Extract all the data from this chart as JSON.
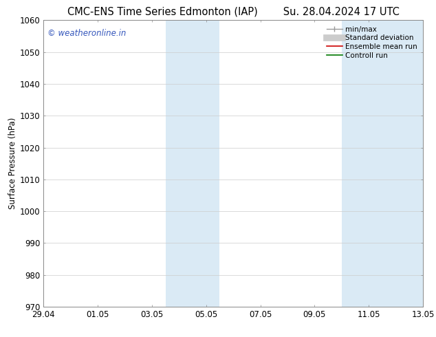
{
  "title_left": "CMC-ENS Time Series Edmonton (IAP)",
  "title_right": "Su. 28.04.2024 17 UTC",
  "ylabel": "Surface Pressure (hPa)",
  "ylim": [
    970,
    1060
  ],
  "yticks": [
    970,
    980,
    990,
    1000,
    1010,
    1020,
    1030,
    1040,
    1050,
    1060
  ],
  "xtick_labels": [
    "29.04",
    "01.05",
    "03.05",
    "05.05",
    "07.05",
    "09.05",
    "11.05",
    "13.05"
  ],
  "x_positions": [
    0,
    2,
    4,
    6,
    8,
    10,
    12,
    14
  ],
  "x_min": 0,
  "x_max": 14,
  "shaded_regions": [
    {
      "xmin": 4.5,
      "xmax": 6.5
    },
    {
      "xmin": 11.0,
      "xmax": 14.0
    }
  ],
  "shaded_color": "#daeaf5",
  "background_color": "#ffffff",
  "watermark_text": "© weatheronline.in",
  "watermark_color": "#3355bb",
  "legend_items": [
    {
      "label": "min/max",
      "color": "#aaaaaa",
      "lw": 1.2
    },
    {
      "label": "Standard deviation",
      "color": "#cccccc",
      "lw": 6
    },
    {
      "label": "Ensemble mean run",
      "color": "#cc0000",
      "lw": 1.2
    },
    {
      "label": "Controll run",
      "color": "#007700",
      "lw": 1.2
    }
  ],
  "grid_color": "#cccccc",
  "spine_color": "#888888",
  "title_fontsize": 10.5,
  "tick_label_fontsize": 8.5,
  "ylabel_fontsize": 8.5,
  "watermark_fontsize": 8.5,
  "legend_fontsize": 7.5
}
